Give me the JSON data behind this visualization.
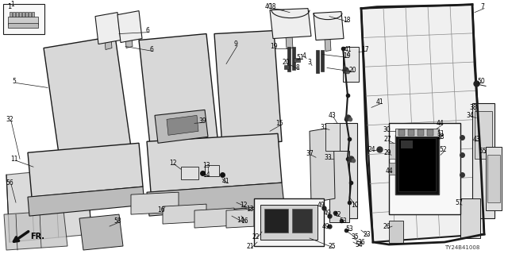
{
  "bg_color": "#ffffff",
  "line_color": "#1a1a1a",
  "text_color": "#000000",
  "gray_fill": "#d8d8d8",
  "gray_mid": "#bbbbbb",
  "gray_dark": "#888888",
  "gray_light": "#eeeeee",
  "font_size": 5.5,
  "diagram_code": "TY24B41008",
  "fig_width": 6.4,
  "fig_height": 3.2,
  "dpi": 100
}
